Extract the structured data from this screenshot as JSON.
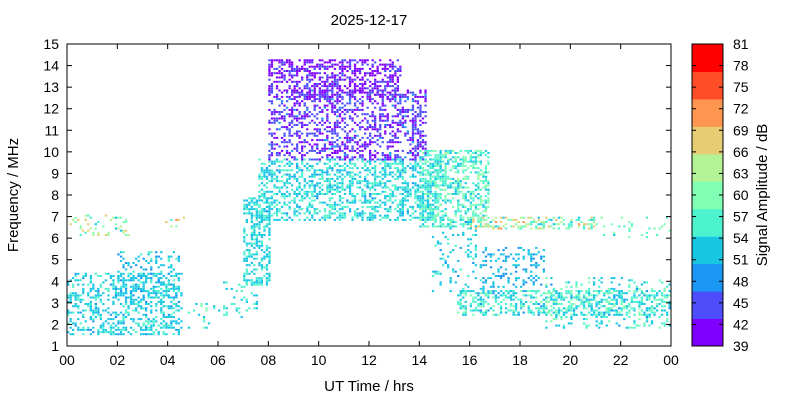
{
  "chart_data": {
    "type": "heatmap",
    "title": "2025-12-17",
    "xlabel": "UT Time / hrs",
    "ylabel": "Frequency / MHz",
    "colorbar_label": "Signal Amplitude / dB",
    "xlim": [
      0,
      24
    ],
    "ylim": [
      1,
      15
    ],
    "x_ticks": [
      "00",
      "02",
      "04",
      "06",
      "08",
      "10",
      "12",
      "14",
      "16",
      "18",
      "20",
      "22",
      "00"
    ],
    "y_ticks": [
      "1",
      "2",
      "3",
      "4",
      "5",
      "6",
      "7",
      "8",
      "9",
      "10",
      "11",
      "12",
      "13",
      "14",
      "15"
    ],
    "colorbar_ticks": [
      "39",
      "42",
      "45",
      "48",
      "51",
      "54",
      "57",
      "60",
      "63",
      "66",
      "69",
      "72",
      "75",
      "78",
      "81"
    ],
    "colorbar_range": [
      39,
      81
    ],
    "colorbar_colors": [
      "#8000ff",
      "#4d4dfc",
      "#1a96f3",
      "#17c6e3",
      "#4df3ce",
      "#80ffb4",
      "#b3f396",
      "#e6cd73",
      "#ff964f",
      "#ff4d28",
      "#ff0000"
    ],
    "grid": false,
    "clusters": [
      {
        "x": [
          0.0,
          4.6
        ],
        "y": [
          1.5,
          4.4
        ],
        "db": [
          50,
          56
        ],
        "density": 0.38
      },
      {
        "x": [
          2.0,
          4.5
        ],
        "y": [
          3.0,
          5.3
        ],
        "db": [
          49,
          55
        ],
        "density": 0.25
      },
      {
        "x": [
          0.0,
          2.5
        ],
        "y": [
          6.1,
          7.0
        ],
        "db": [
          52,
          70
        ],
        "density": 0.18
      },
      {
        "x": [
          3.6,
          4.6
        ],
        "y": [
          6.5,
          6.9
        ],
        "db": [
          55,
          72
        ],
        "density": 0.15
      },
      {
        "x": [
          4.8,
          6.2
        ],
        "y": [
          1.8,
          3.0
        ],
        "db": [
          52,
          60
        ],
        "density": 0.12
      },
      {
        "x": [
          6.2,
          7.6
        ],
        "y": [
          2.2,
          4.0
        ],
        "db": [
          52,
          58
        ],
        "density": 0.15
      },
      {
        "x": [
          7.0,
          8.0
        ],
        "y": [
          3.8,
          7.8
        ],
        "db": [
          51,
          56
        ],
        "density": 0.45
      },
      {
        "x": [
          7.6,
          14.8
        ],
        "y": [
          6.8,
          9.6
        ],
        "db": [
          50,
          58
        ],
        "density": 0.45
      },
      {
        "x": [
          8.0,
          14.2
        ],
        "y": [
          9.6,
          12.8
        ],
        "db": [
          40,
          47
        ],
        "density": 0.42
      },
      {
        "x": [
          8.0,
          13.2
        ],
        "y": [
          12.5,
          14.2
        ],
        "db": [
          39,
          45
        ],
        "density": 0.5
      },
      {
        "x": [
          14.0,
          16.8
        ],
        "y": [
          6.5,
          10.0
        ],
        "db": [
          52,
          62
        ],
        "density": 0.5
      },
      {
        "x": [
          14.5,
          16.5
        ],
        "y": [
          3.5,
          6.8
        ],
        "db": [
          50,
          56
        ],
        "density": 0.12
      },
      {
        "x": [
          16.0,
          21.0
        ],
        "y": [
          6.4,
          6.9
        ],
        "db": [
          52,
          70
        ],
        "density": 0.4
      },
      {
        "x": [
          16.5,
          19.0
        ],
        "y": [
          3.5,
          5.5
        ],
        "db": [
          48,
          54
        ],
        "density": 0.25
      },
      {
        "x": [
          15.5,
          24.0
        ],
        "y": [
          2.4,
          3.6
        ],
        "db": [
          50,
          60
        ],
        "density": 0.42
      },
      {
        "x": [
          19.0,
          24.0
        ],
        "y": [
          1.8,
          4.2
        ],
        "db": [
          50,
          60
        ],
        "density": 0.18
      },
      {
        "x": [
          21.0,
          24.0
        ],
        "y": [
          6.0,
          6.9
        ],
        "db": [
          54,
          62
        ],
        "density": 0.12
      }
    ]
  }
}
